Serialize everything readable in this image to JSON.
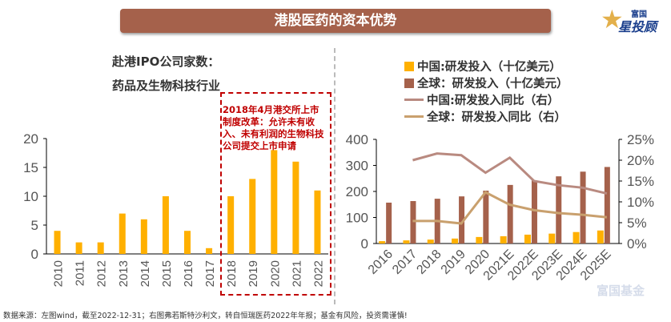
{
  "header": {
    "title": "港股医药的资本优势"
  },
  "logo": {
    "small": "富国",
    "big": "星投顾"
  },
  "watermark": "富国基金",
  "left_chart": {
    "title_line1": "赴港IPO公司家数：",
    "title_line2": "药品及生物科技行业",
    "annotation": "2018年4月港交所上市制度改革：允许未有收入、未有利润的生物科技公司提交上市申请"
  },
  "legend": {
    "items": [
      {
        "label": "中国:研发投入（十亿美元）",
        "color": "#ffb000",
        "type": "bar"
      },
      {
        "label": "全球：研发投入（十亿美元）",
        "color": "#a5614b",
        "type": "bar"
      },
      {
        "label": "中国:研发投入同比（右）",
        "color": "#b98a80",
        "type": "line"
      },
      {
        "label": "全球：研发投入同比（右）",
        "color": "#c9a06e",
        "type": "line"
      }
    ]
  },
  "footnote": "数据来源：左图wind，截至2022-12-31；右图弗若斯特沙利文，转自恒瑞医药2022年年报；基金有风险，投资需谨慎!",
  "chart_data": [
    {
      "type": "bar",
      "categories": [
        "2010",
        "2011",
        "2012",
        "2013",
        "2014",
        "2015",
        "2016",
        "2017",
        "2018",
        "2019",
        "2020",
        "2021",
        "2022"
      ],
      "values": [
        4,
        2,
        2,
        7,
        6,
        10,
        4,
        1,
        10,
        13,
        18,
        16,
        11
      ],
      "ylim": [
        0,
        20
      ],
      "yticks": [
        "0",
        "5",
        "10",
        "15",
        "20"
      ],
      "color": "#ffb000"
    },
    {
      "type": "bar+line",
      "categories": [
        "2016",
        "2017",
        "2018",
        "2019",
        "2020",
        "2021E",
        "2022E",
        "2023E",
        "2024E",
        "2025E"
      ],
      "ylim": [
        0,
        400
      ],
      "yticks": [
        "0",
        "100",
        "200",
        "300",
        "400"
      ],
      "y2lim": [
        0,
        25
      ],
      "y2ticks": [
        "0%",
        "5%",
        "10%",
        "15%",
        "20%",
        "25%"
      ],
      "series": [
        {
          "name": "中国:研发投入（十亿美元）",
          "type": "bar",
          "axis": "left",
          "values": [
            9,
            12,
            15,
            19,
            25,
            28,
            34,
            38,
            44,
            50
          ]
        },
        {
          "name": "全球：研发投入（十亿美元）",
          "type": "bar",
          "axis": "left",
          "values": [
            157,
            163,
            172,
            181,
            203,
            225,
            242,
            258,
            276,
            294
          ]
        },
        {
          "name": "中国:研发投入同比（右）",
          "type": "line",
          "axis": "right",
          "values": [
            null,
            20,
            21.6,
            21.2,
            17,
            20.6,
            15,
            14,
            13.4,
            12
          ]
        },
        {
          "name": "全球：研发投入同比（右）",
          "type": "line",
          "axis": "right",
          "values": [
            null,
            5.4,
            5.4,
            4.8,
            12.3,
            9.3,
            8,
            7.3,
            6.9,
            6.3
          ]
        }
      ]
    }
  ]
}
